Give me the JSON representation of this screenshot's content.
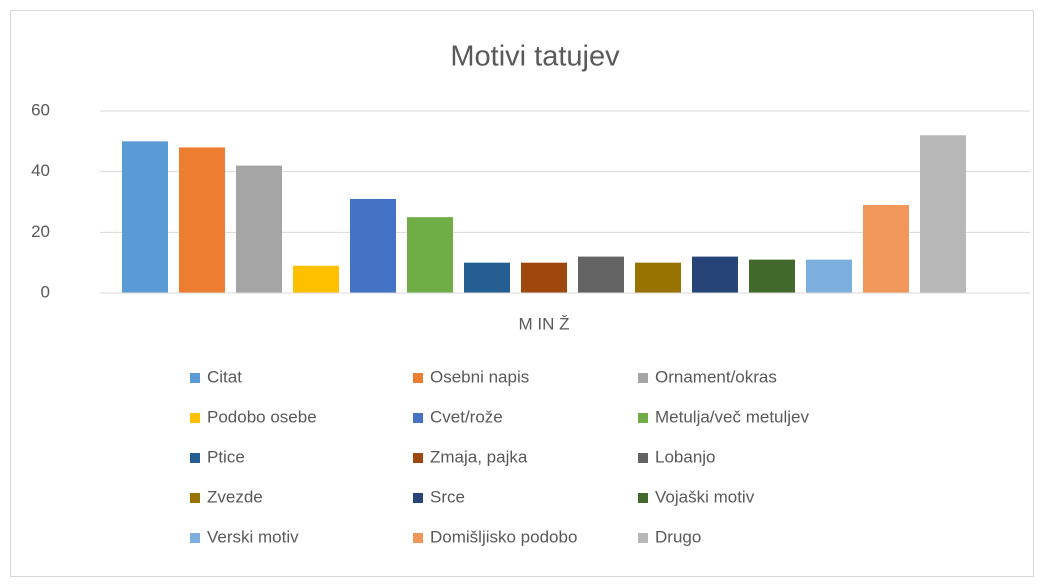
{
  "chart_data": {
    "type": "bar",
    "title": "Motivi tatujev",
    "categories": [
      "M IN Ž"
    ],
    "series": [
      {
        "name": "Citat",
        "color": "#5b9bd5",
        "values": [
          50
        ]
      },
      {
        "name": "Osebni napis",
        "color": "#ed7d31",
        "values": [
          48
        ]
      },
      {
        "name": "Ornament/okras",
        "color": "#a5a5a5",
        "values": [
          42
        ]
      },
      {
        "name": "Podobo osebe",
        "color": "#ffc000",
        "values": [
          9
        ]
      },
      {
        "name": "Cvet/rože",
        "color": "#4472c4",
        "values": [
          31
        ]
      },
      {
        "name": "Metulja/več metuljev",
        "color": "#70ad47",
        "values": [
          25
        ]
      },
      {
        "name": "Ptice",
        "color": "#255e91",
        "values": [
          10
        ]
      },
      {
        "name": "Zmaja, pajka",
        "color": "#9e480e",
        "values": [
          10
        ]
      },
      {
        "name": "Lobanjo",
        "color": "#636363",
        "values": [
          12
        ]
      },
      {
        "name": "Zvezde",
        "color": "#997300",
        "values": [
          10
        ]
      },
      {
        "name": "Srce",
        "color": "#264478",
        "values": [
          12
        ]
      },
      {
        "name": "Vojaški motiv",
        "color": "#43682b",
        "values": [
          11
        ]
      },
      {
        "name": "Verski motiv",
        "color": "#7cafdd",
        "values": [
          11
        ]
      },
      {
        "name": "Domišljisko podobo",
        "color": "#f1975a",
        "values": [
          29
        ]
      },
      {
        "name": "Drugo",
        "color": "#b7b7b7",
        "values": [
          52
        ]
      }
    ],
    "ylim": [
      0,
      60
    ],
    "yticks": [
      0,
      20,
      40,
      60
    ],
    "grid": true,
    "legend": "bottom"
  }
}
